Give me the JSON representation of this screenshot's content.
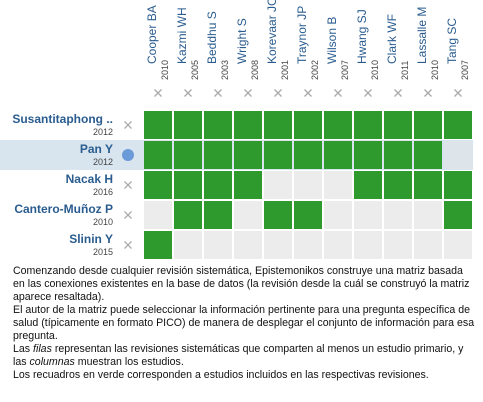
{
  "columns": [
    {
      "name": "Cooper BA",
      "year": "2010"
    },
    {
      "name": "Kazmi WH",
      "year": "2005"
    },
    {
      "name": "Beddhu S",
      "year": "2003"
    },
    {
      "name": "Wright S",
      "year": "2008"
    },
    {
      "name": "Korevaar JC",
      "year": "2001"
    },
    {
      "name": "Traynor JP",
      "year": "2002"
    },
    {
      "name": "Wilson B",
      "year": "2007"
    },
    {
      "name": "Hwang SJ",
      "year": "2010"
    },
    {
      "name": "Clark WF",
      "year": "2011"
    },
    {
      "name": "Lassalle M",
      "year": "2010"
    },
    {
      "name": "Tang SC",
      "year": "2007"
    }
  ],
  "rows": [
    {
      "name": "Susantitaphong ..",
      "year": "2012",
      "included": [
        true,
        true,
        true,
        true,
        true,
        true,
        true,
        true,
        true,
        true,
        true
      ]
    },
    {
      "name": "Pan Y",
      "year": "2012",
      "selected": true,
      "included": [
        true,
        true,
        true,
        true,
        true,
        true,
        true,
        true,
        true,
        true,
        false
      ]
    },
    {
      "name": "Nacak H",
      "year": "2016",
      "included": [
        true,
        true,
        true,
        true,
        false,
        false,
        false,
        true,
        true,
        true,
        true
      ]
    },
    {
      "name": "Cantero-Muñoz P",
      "year": "2010",
      "included": [
        false,
        true,
        true,
        false,
        true,
        true,
        false,
        false,
        false,
        false,
        true
      ]
    },
    {
      "name": "Slinin Y",
      "year": "2015",
      "included": [
        true,
        false,
        false,
        false,
        false,
        false,
        false,
        false,
        false,
        false,
        false
      ]
    }
  ],
  "description": {
    "p1": "Comenzando desde cualquier revisión sistemática, Epistemonikos construye una matriz basada en las conexiones existentes en la base de datos (la revisión desde la cuál se construyó la matriz aparece resaltada).",
    "p2": "El autor de la matriz puede seleccionar la información pertinente para una pregunta específica de salud (típicamente en formato PICO) de manera de desplegar el conjunto de información para esa pregunta.",
    "p3": [
      "Las ",
      "filas",
      " representan las revisiones sistemáticas que comparten al menos un estudio primario, y las ",
      "columnas",
      " muestran los estudios."
    ],
    "p4": "Los recuadros en verde corresponden a estudios incluidos en las respectivas revisiones."
  }
}
